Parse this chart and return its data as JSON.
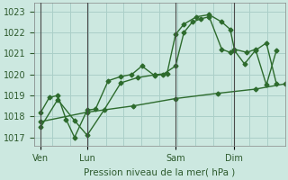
{
  "title": "",
  "xlabel": "Pression niveau de la mer( hPa )",
  "ylabel": "",
  "bg_color": "#cce8e0",
  "grid_color": "#aacfc8",
  "line_color": "#2d6b2d",
  "ylim": [
    1016.6,
    1023.4
  ],
  "yticks": [
    1017,
    1018,
    1019,
    1020,
    1021,
    1022,
    1023
  ],
  "xtick_positions": [
    0,
    55,
    160,
    230
  ],
  "xtick_labels": [
    "Ven",
    "Lun",
    "Sam",
    "Dim"
  ],
  "vline_positions": [
    0,
    55,
    160,
    230
  ],
  "xlim": [
    -8,
    290
  ],
  "line1_x": [
    0,
    10,
    20,
    30,
    40,
    55,
    65,
    80,
    95,
    108,
    120,
    135,
    145,
    160,
    170,
    180,
    190,
    200,
    215,
    225,
    230,
    242,
    255,
    268,
    280
  ],
  "line1_y": [
    1018.2,
    1018.9,
    1019.0,
    1017.85,
    1017.0,
    1018.3,
    1018.35,
    1019.7,
    1019.9,
    1020.0,
    1020.4,
    1019.95,
    1020.0,
    1020.4,
    1022.0,
    1022.5,
    1022.65,
    1022.75,
    1021.2,
    1021.05,
    1021.15,
    1020.5,
    1021.15,
    1021.5,
    1019.55
  ],
  "line2_x": [
    0,
    20,
    40,
    55,
    75,
    95,
    115,
    135,
    150,
    160,
    170,
    185,
    200,
    215,
    225,
    230,
    245,
    255,
    268,
    280
  ],
  "line2_y": [
    1017.5,
    1018.8,
    1017.8,
    1017.1,
    1018.3,
    1019.6,
    1019.85,
    1019.98,
    1020.05,
    1021.9,
    1022.4,
    1022.75,
    1022.85,
    1022.5,
    1022.15,
    1021.2,
    1021.05,
    1021.2,
    1019.5,
    1021.15
  ],
  "line3_x": [
    0,
    55,
    110,
    160,
    210,
    255,
    290
  ],
  "line3_y": [
    1017.75,
    1018.2,
    1018.5,
    1018.85,
    1019.1,
    1019.3,
    1019.55
  ],
  "markersize": 2.5,
  "linewidth": 1.0
}
